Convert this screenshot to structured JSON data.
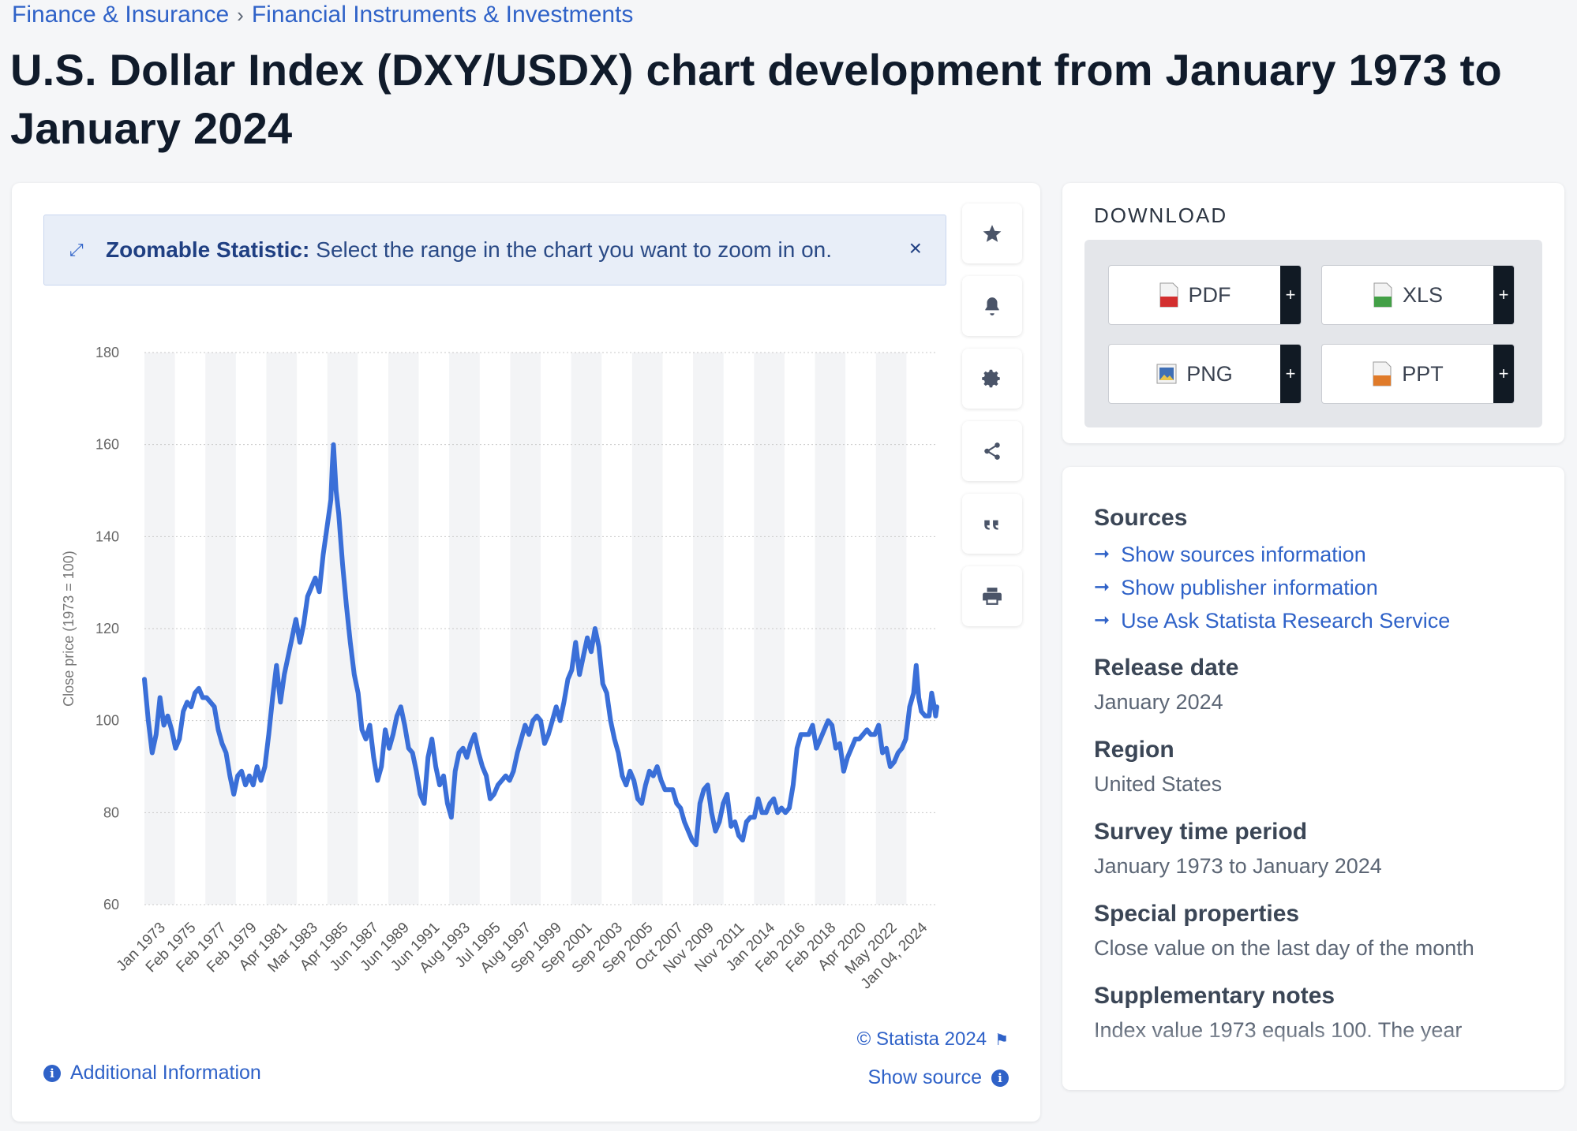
{
  "breadcrumb": {
    "items": [
      "Finance & Insurance",
      "Financial Instruments & Investments"
    ],
    "separator": "›"
  },
  "page_title": "U.S. Dollar Index (DXY/USDX) chart development from January 1973 to January 2024",
  "zoom_banner": {
    "strong": "Zoomable Statistic:",
    "text": "Select the range in the chart you want to zoom in on.",
    "close": "×"
  },
  "toolbar_icons": [
    "star-icon",
    "bell-icon",
    "gear-icon",
    "share-icon",
    "quote-icon",
    "print-icon"
  ],
  "chart_footer": {
    "copyright": "© Statista 2024",
    "show_source": "Show source",
    "additional_info": "Additional Information"
  },
  "download": {
    "title": "DOWNLOAD",
    "buttons": [
      {
        "label": "PDF",
        "plus": "+",
        "color": "#d32f2f"
      },
      {
        "label": "XLS",
        "plus": "+",
        "color": "#43a047"
      },
      {
        "label": "PNG",
        "plus": "+",
        "color": "#3f6fb5"
      },
      {
        "label": "PPT",
        "plus": "+",
        "color": "#e07b2a"
      }
    ]
  },
  "info": {
    "sources_head": "Sources",
    "links": [
      "Show sources information",
      "Show publisher information",
      "Use Ask Statista Research Service"
    ],
    "release_head": "Release date",
    "release_val": "January 2024",
    "region_head": "Region",
    "region_val": "United States",
    "period_head": "Survey time period",
    "period_val": "January 1973 to January 2024",
    "special_head": "Special properties",
    "special_val": "Close value on the last day of the month",
    "notes_head": "Supplementary notes",
    "notes_val": "Index value 1973 equals 100. The year"
  },
  "colors": {
    "accent": "#2f62c8",
    "line": "#3a6fd8"
  },
  "chart_data": {
    "type": "line",
    "ylabel": "Close price (1973 = 100)",
    "ylim": [
      60,
      180
    ],
    "yticks": [
      60,
      80,
      100,
      120,
      140,
      160,
      180
    ],
    "xticks": [
      "Jan 1973",
      "Feb 1975",
      "Feb 1977",
      "Feb 1979",
      "Apr 1981",
      "Mar 1983",
      "Apr 1985",
      "Jun 1987",
      "Jun 1989",
      "Jun 1991",
      "Aug 1993",
      "Jul 1995",
      "Aug 1997",
      "Sep 1999",
      "Sep 2001",
      "Sep 2003",
      "Sep 2005",
      "Oct 2007",
      "Nov 2009",
      "Nov 2011",
      "Jan 2014",
      "Feb 2016",
      "Feb 2018",
      "Apr 2020",
      "May 2022",
      "Jan 04, 2024"
    ],
    "grid": true,
    "legend": "none",
    "series": [
      {
        "values": [
          [
            "1973-01",
            109
          ],
          [
            "1973-04",
            100
          ],
          [
            "1973-07",
            93
          ],
          [
            "1973-10",
            97
          ],
          [
            "1974-01",
            105
          ],
          [
            "1974-04",
            99
          ],
          [
            "1974-07",
            101
          ],
          [
            "1974-10",
            98
          ],
          [
            "1975-01",
            94
          ],
          [
            "1975-04",
            96
          ],
          [
            "1975-07",
            102
          ],
          [
            "1975-10",
            104
          ],
          [
            "1976-01",
            103
          ],
          [
            "1976-04",
            106
          ],
          [
            "1976-07",
            107
          ],
          [
            "1976-10",
            105
          ],
          [
            "1977-01",
            105
          ],
          [
            "1977-04",
            104
          ],
          [
            "1977-07",
            103
          ],
          [
            "1977-10",
            98
          ],
          [
            "1978-01",
            95
          ],
          [
            "1978-04",
            93
          ],
          [
            "1978-07",
            88
          ],
          [
            "1978-10",
            84
          ],
          [
            "1979-01",
            88
          ],
          [
            "1979-04",
            89
          ],
          [
            "1979-07",
            86
          ],
          [
            "1979-10",
            88
          ],
          [
            "1980-01",
            86
          ],
          [
            "1980-04",
            90
          ],
          [
            "1980-07",
            87
          ],
          [
            "1980-10",
            90
          ],
          [
            "1981-01",
            97
          ],
          [
            "1981-04",
            105
          ],
          [
            "1981-07",
            112
          ],
          [
            "1981-10",
            104
          ],
          [
            "1982-01",
            110
          ],
          [
            "1982-04",
            114
          ],
          [
            "1982-07",
            118
          ],
          [
            "1982-10",
            122
          ],
          [
            "1983-01",
            117
          ],
          [
            "1983-04",
            121
          ],
          [
            "1983-07",
            127
          ],
          [
            "1983-10",
            129
          ],
          [
            "1984-01",
            131
          ],
          [
            "1984-04",
            128
          ],
          [
            "1984-07",
            136
          ],
          [
            "1984-10",
            142
          ],
          [
            "1985-01",
            148
          ],
          [
            "1985-02",
            155
          ],
          [
            "1985-03",
            160
          ],
          [
            "1985-05",
            150
          ],
          [
            "1985-07",
            145
          ],
          [
            "1985-10",
            134
          ],
          [
            "1986-01",
            125
          ],
          [
            "1986-04",
            117
          ],
          [
            "1986-07",
            110
          ],
          [
            "1986-10",
            106
          ],
          [
            "1987-01",
            98
          ],
          [
            "1987-04",
            96
          ],
          [
            "1987-07",
            99
          ],
          [
            "1987-10",
            92
          ],
          [
            "1988-01",
            87
          ],
          [
            "1988-04",
            90
          ],
          [
            "1988-07",
            98
          ],
          [
            "1988-10",
            94
          ],
          [
            "1989-01",
            97
          ],
          [
            "1989-04",
            101
          ],
          [
            "1989-07",
            103
          ],
          [
            "1989-10",
            99
          ],
          [
            "1990-01",
            94
          ],
          [
            "1990-04",
            93
          ],
          [
            "1990-07",
            89
          ],
          [
            "1990-10",
            84
          ],
          [
            "1991-01",
            82
          ],
          [
            "1991-04",
            92
          ],
          [
            "1991-07",
            96
          ],
          [
            "1991-10",
            90
          ],
          [
            "1992-01",
            86
          ],
          [
            "1992-04",
            88
          ],
          [
            "1992-07",
            82
          ],
          [
            "1992-10",
            79
          ],
          [
            "1993-01",
            89
          ],
          [
            "1993-04",
            93
          ],
          [
            "1993-07",
            94
          ],
          [
            "1993-10",
            92
          ],
          [
            "1994-01",
            95
          ],
          [
            "1994-04",
            97
          ],
          [
            "1994-07",
            93
          ],
          [
            "1994-10",
            90
          ],
          [
            "1995-01",
            88
          ],
          [
            "1995-04",
            83
          ],
          [
            "1995-07",
            84
          ],
          [
            "1995-10",
            86
          ],
          [
            "1996-01",
            87
          ],
          [
            "1996-04",
            88
          ],
          [
            "1996-07",
            87
          ],
          [
            "1996-10",
            89
          ],
          [
            "1997-01",
            93
          ],
          [
            "1997-04",
            96
          ],
          [
            "1997-07",
            99
          ],
          [
            "1997-10",
            97
          ],
          [
            "1998-01",
            100
          ],
          [
            "1998-04",
            101
          ],
          [
            "1998-07",
            100
          ],
          [
            "1998-10",
            95
          ],
          [
            "1999-01",
            97
          ],
          [
            "1999-04",
            100
          ],
          [
            "1999-07",
            103
          ],
          [
            "1999-10",
            100
          ],
          [
            "2000-01",
            104
          ],
          [
            "2000-04",
            109
          ],
          [
            "2000-07",
            111
          ],
          [
            "2000-10",
            117
          ],
          [
            "2001-01",
            110
          ],
          [
            "2001-04",
            114
          ],
          [
            "2001-07",
            118
          ],
          [
            "2001-10",
            115
          ],
          [
            "2002-01",
            120
          ],
          [
            "2002-04",
            116
          ],
          [
            "2002-07",
            108
          ],
          [
            "2002-10",
            106
          ],
          [
            "2003-01",
            100
          ],
          [
            "2003-04",
            96
          ],
          [
            "2003-07",
            93
          ],
          [
            "2003-10",
            88
          ],
          [
            "2004-01",
            86
          ],
          [
            "2004-04",
            89
          ],
          [
            "2004-07",
            87
          ],
          [
            "2004-10",
            83
          ],
          [
            "2005-01",
            82
          ],
          [
            "2005-04",
            86
          ],
          [
            "2005-07",
            89
          ],
          [
            "2005-10",
            88
          ],
          [
            "2006-01",
            90
          ],
          [
            "2006-04",
            87
          ],
          [
            "2006-07",
            85
          ],
          [
            "2006-10",
            85
          ],
          [
            "2007-01",
            85
          ],
          [
            "2007-04",
            82
          ],
          [
            "2007-07",
            81
          ],
          [
            "2007-10",
            78
          ],
          [
            "2008-01",
            76
          ],
          [
            "2008-04",
            74
          ],
          [
            "2008-07",
            73
          ],
          [
            "2008-10",
            82
          ],
          [
            "2009-01",
            85
          ],
          [
            "2009-04",
            86
          ],
          [
            "2009-07",
            80
          ],
          [
            "2009-10",
            76
          ],
          [
            "2010-01",
            78
          ],
          [
            "2010-04",
            82
          ],
          [
            "2010-07",
            84
          ],
          [
            "2010-10",
            77
          ],
          [
            "2011-01",
            78
          ],
          [
            "2011-04",
            75
          ],
          [
            "2011-07",
            74
          ],
          [
            "2011-10",
            78
          ],
          [
            "2012-01",
            79
          ],
          [
            "2012-04",
            79
          ],
          [
            "2012-07",
            83
          ],
          [
            "2012-10",
            80
          ],
          [
            "2013-01",
            80
          ],
          [
            "2013-04",
            82
          ],
          [
            "2013-07",
            83
          ],
          [
            "2013-10",
            80
          ],
          [
            "2014-01",
            81
          ],
          [
            "2014-04",
            80
          ],
          [
            "2014-07",
            81
          ],
          [
            "2014-10",
            86
          ],
          [
            "2015-01",
            94
          ],
          [
            "2015-04",
            97
          ],
          [
            "2015-07",
            97
          ],
          [
            "2015-10",
            97
          ],
          [
            "2016-01",
            99
          ],
          [
            "2016-04",
            94
          ],
          [
            "2016-07",
            96
          ],
          [
            "2016-10",
            98
          ],
          [
            "2017-01",
            100
          ],
          [
            "2017-04",
            99
          ],
          [
            "2017-07",
            94
          ],
          [
            "2017-10",
            95
          ],
          [
            "2018-01",
            89
          ],
          [
            "2018-04",
            92
          ],
          [
            "2018-07",
            94
          ],
          [
            "2018-10",
            96
          ],
          [
            "2019-01",
            96
          ],
          [
            "2019-04",
            97
          ],
          [
            "2019-07",
            98
          ],
          [
            "2019-10",
            97
          ],
          [
            "2020-01",
            97
          ],
          [
            "2020-04",
            99
          ],
          [
            "2020-07",
            93
          ],
          [
            "2020-10",
            94
          ],
          [
            "2021-01",
            90
          ],
          [
            "2021-04",
            91
          ],
          [
            "2021-07",
            93
          ],
          [
            "2021-10",
            94
          ],
          [
            "2022-01",
            96
          ],
          [
            "2022-04",
            103
          ],
          [
            "2022-07",
            106
          ],
          [
            "2022-09",
            112
          ],
          [
            "2022-11",
            105
          ],
          [
            "2023-01",
            102
          ],
          [
            "2023-04",
            101
          ],
          [
            "2023-07",
            101
          ],
          [
            "2023-09",
            106
          ],
          [
            "2023-11",
            103
          ],
          [
            "2023-12",
            101
          ],
          [
            "2024-01",
            103
          ]
        ]
      }
    ]
  }
}
